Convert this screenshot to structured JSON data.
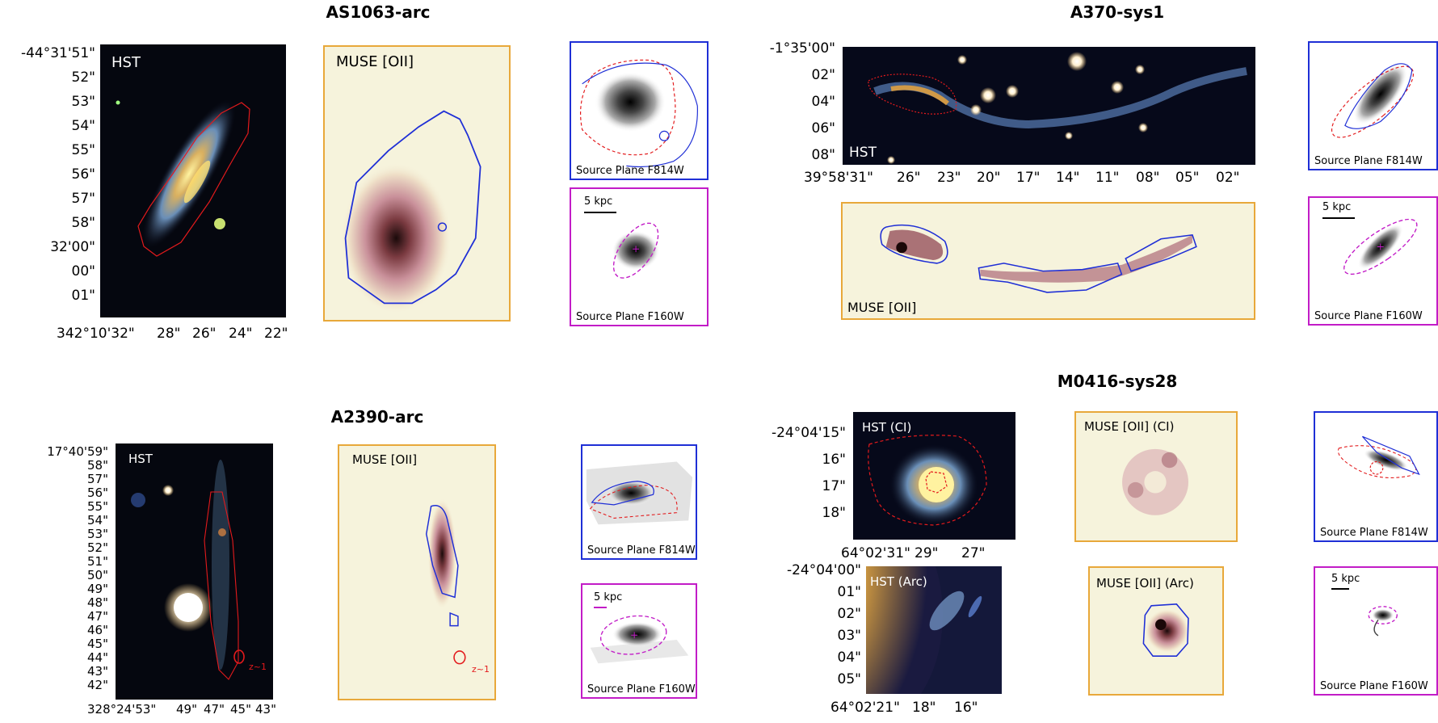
{
  "colors": {
    "hst_contour": "#e31a1c",
    "muse_contour": "#1f2fd6",
    "muse_frame": "#e8a83a",
    "f814w_frame": "#1f2fd6",
    "f160w_frame": "#c21cc7",
    "ellipse": "#c21cc7",
    "muse_bg": "#f6f3dc"
  },
  "systems": [
    {
      "title": "AS1063-arc",
      "hst": {
        "label": "HST",
        "ra_ticks": [
          "342°10'32\"",
          "28\"",
          "26\"",
          "24\"",
          "22\""
        ],
        "dec_ticks": [
          "-44°31'51\"",
          "52\"",
          "53\"",
          "54\"",
          "55\"",
          "56\"",
          "57\"",
          "58\"",
          "32'00\"",
          "00\"",
          "01\""
        ]
      },
      "muse": {
        "label": "MUSE [OII]"
      },
      "source_f814w": {
        "label": "Source Plane F814W"
      },
      "source_f160w": {
        "label": "Source Plane F160W",
        "scalebar": "5 kpc"
      }
    },
    {
      "title": "A370-sys1",
      "hst": {
        "label": "HST",
        "ra_ticks": [
          "39°58'31\"",
          "26\"",
          "23\"",
          "20\"",
          "17\"",
          "14\"",
          "11\"",
          "08\"",
          "05\"",
          "02\""
        ],
        "dec_ticks": [
          "-1°35'00\"",
          "02\"",
          "04\"",
          "06\"",
          "08\""
        ]
      },
      "muse": {
        "label": "MUSE [OII]"
      },
      "source_f814w": {
        "label": "Source Plane F814W"
      },
      "source_f160w": {
        "label": "Source Plane F160W",
        "scalebar": "5 kpc"
      }
    },
    {
      "title": "A2390-arc",
      "hst": {
        "label": "HST",
        "zlabel": "z~1",
        "ra_ticks": [
          "328°24'53\"",
          "49\"",
          "47\"",
          "45\"",
          "43\""
        ],
        "dec_ticks": [
          "17°40'59\"",
          "58\"",
          "57\"",
          "56\"",
          "55\"",
          "54\"",
          "53\"",
          "52\"",
          "51\"",
          "50\"",
          "49\"",
          "48\"",
          "47\"",
          "46\"",
          "45\"",
          "44\"",
          "43\"",
          "42\""
        ]
      },
      "muse": {
        "label": "MUSE [OII]",
        "zlabel": "z~1"
      },
      "source_f814w": {
        "label": "Source Plane F814W"
      },
      "source_f160w": {
        "label": "Source Plane F160W",
        "scalebar": "5 kpc"
      }
    },
    {
      "title": "M0416-sys28",
      "hst_ci": {
        "label": "HST (CI)",
        "ra_ticks": [
          "64°02'31\"",
          "29\"",
          "27\""
        ],
        "dec_ticks": [
          "-24°04'15\"",
          "16\"",
          "17\"",
          "18\""
        ]
      },
      "hst_arc": {
        "label": "HST (Arc)",
        "ra_ticks": [
          "64°02'21\"",
          "18\"",
          "16\""
        ],
        "dec_ticks": [
          "-24°04'00\"",
          "01\"",
          "02\"",
          "03\"",
          "04\"",
          "05\""
        ]
      },
      "muse_ci": {
        "label": "MUSE [OII] (CI)"
      },
      "muse_arc": {
        "label": "MUSE [OII] (Arc)"
      },
      "source_f814w": {
        "label": "Source Plane F814W"
      },
      "source_f160w": {
        "label": "Source Plane F160W",
        "scalebar": "5 kpc"
      }
    }
  ]
}
